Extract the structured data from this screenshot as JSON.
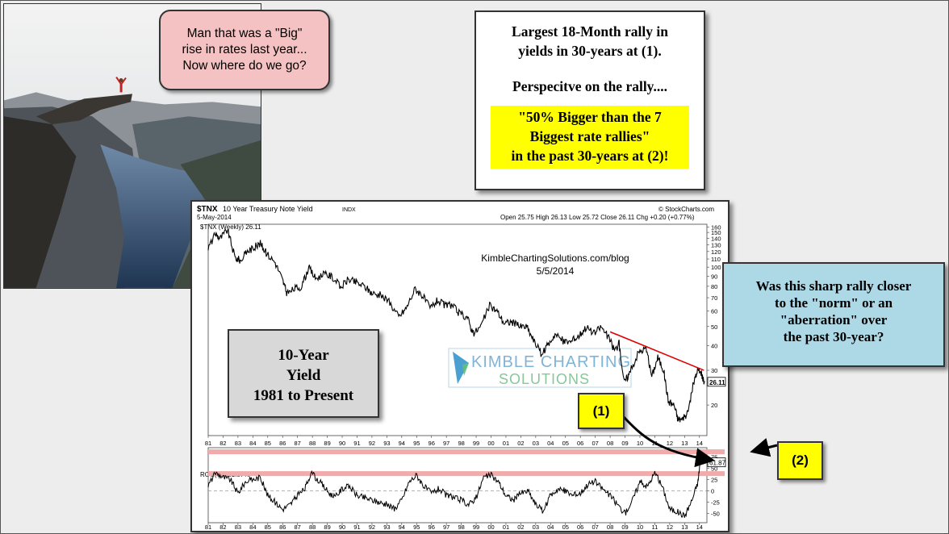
{
  "meme": {
    "bubble": "Man that was a \"Big\"\nrise in rates last year...\nNow where do we go?"
  },
  "headline": {
    "line1": "Largest 18-Month rally in\nyields in 30-years at (1).",
    "line2": "Perspecitve on the rally....",
    "highlight": "\"50% Bigger than the 7\nBiggest rate rallies\"\nin the past 30-years at (2)!"
  },
  "series_box": "10-Year\nYield\n1981 to Present",
  "question_box": "Was this sharp rally closer\nto the \"norm\" or an\n\"aberration\" over\nthe past 30-year?",
  "markers": {
    "one": "(1)",
    "two": "(2)"
  },
  "chart_header": {
    "symbol": "$TNX",
    "name": "10 Year Treasury Note Yield",
    "index": "INDX",
    "date": "5-May-2014",
    "ohlc": "Open 25.75  High 26.13  Low 25.72  Close 26.11  Chg +0.20 (+0.77%)",
    "source": "© StockCharts.com",
    "legend_price": "$TNX (Weekly) 26.11",
    "legend_roc": "ROC(78) 61.87%",
    "watermark_site": "KimbleChartingSolutions.com/blog",
    "watermark_date": "5/5/2014",
    "logo_line1": "KIMBLE CHARTING",
    "logo_line2": "SOLUTIONS",
    "last_price": "26.11",
    "last_roc": "61.87"
  },
  "colors": {
    "price_line": "#000000",
    "resistance_line": "#e00000",
    "band": "#f2aaaa",
    "bubble": "#f4c2c2",
    "highlight": "#ffff00",
    "question": "#add8e6",
    "series_box": "#d8d8d8"
  },
  "chart_data": [
    {
      "type": "line",
      "title": "$TNX (Weekly)",
      "x_ticks": [
        "81",
        "82",
        "83",
        "84",
        "85",
        "86",
        "87",
        "88",
        "89",
        "90",
        "91",
        "92",
        "93",
        "94",
        "95",
        "96",
        "97",
        "98",
        "99",
        "00",
        "01",
        "02",
        "03",
        "04",
        "05",
        "06",
        "07",
        "08",
        "09",
        "10",
        "11",
        "12",
        "13",
        "14"
      ],
      "y_scale": "log",
      "y_ticks": [
        20,
        30,
        40,
        50,
        60,
        70,
        80,
        90,
        100,
        110,
        120,
        130,
        140,
        150,
        160
      ],
      "ylim": [
        14,
        165
      ],
      "x": [
        1981.0,
        1981.5,
        1981.8,
        1982.3,
        1982.8,
        1983.2,
        1983.6,
        1984.0,
        1984.5,
        1984.9,
        1985.5,
        1986.0,
        1986.3,
        1986.8,
        1987.3,
        1987.75,
        1988.2,
        1988.8,
        1989.3,
        1989.9,
        1990.4,
        1990.9,
        1991.5,
        1992.0,
        1992.6,
        1993.2,
        1993.8,
        1994.3,
        1994.9,
        1995.4,
        1995.9,
        1996.4,
        1996.9,
        1997.4,
        1997.9,
        1998.4,
        1998.8,
        1999.3,
        1999.9,
        2000.4,
        2000.9,
        2001.4,
        2001.9,
        2002.4,
        2002.9,
        2003.4,
        2003.8,
        2004.3,
        2004.9,
        2005.4,
        2005.9,
        2006.4,
        2006.9,
        2007.4,
        2007.9,
        2008.3,
        2008.6,
        2008.95,
        2009.3,
        2009.9,
        2010.4,
        2010.8,
        2011.2,
        2011.6,
        2011.9,
        2012.3,
        2012.55,
        2012.9,
        2013.2,
        2013.6,
        2013.9,
        2014.1,
        2014.35
      ],
      "values": [
        125,
        148,
        140,
        155,
        112,
        108,
        120,
        125,
        132,
        118,
        106,
        86,
        73,
        78,
        80,
        100,
        88,
        92,
        90,
        79,
        87,
        84,
        80,
        74,
        72,
        66,
        56,
        62,
        78,
        72,
        62,
        68,
        64,
        64,
        58,
        56,
        46,
        50,
        64,
        60,
        52,
        53,
        50,
        50,
        42,
        36,
        40,
        46,
        42,
        42,
        45,
        50,
        46,
        50,
        44,
        38,
        41,
        26,
        29,
        37,
        39,
        28,
        35,
        30,
        21,
        20,
        17,
        17,
        18,
        26,
        30,
        29,
        26.11
      ],
      "resistance": {
        "x": [
          2008.0,
          2014.3
        ],
        "values": [
          47,
          30
        ]
      },
      "last_label": "26.11"
    },
    {
      "type": "line",
      "title": "ROC(78)",
      "x_ticks": [
        "81",
        "82",
        "83",
        "84",
        "85",
        "86",
        "87",
        "88",
        "89",
        "90",
        "91",
        "92",
        "93",
        "94",
        "95",
        "96",
        "97",
        "98",
        "99",
        "00",
        "01",
        "02",
        "03",
        "04",
        "05",
        "06",
        "07",
        "08",
        "09",
        "10",
        "11",
        "12",
        "13",
        "14"
      ],
      "y_ticks": [
        -50,
        -25,
        0,
        25,
        50,
        75
      ],
      "ylim": [
        -70,
        95
      ],
      "band_levels": [
        86,
        38
      ],
      "x": [
        1981.0,
        1981.5,
        1982.0,
        1982.5,
        1983.0,
        1983.5,
        1984.0,
        1984.5,
        1985.0,
        1985.5,
        1986.0,
        1986.5,
        1987.0,
        1987.5,
        1987.9,
        1988.5,
        1989.0,
        1989.5,
        1990.0,
        1990.5,
        1991.0,
        1991.5,
        1992.0,
        1992.5,
        1993.0,
        1993.5,
        1994.0,
        1994.5,
        1995.0,
        1995.5,
        1996.0,
        1996.5,
        1997.0,
        1997.5,
        1998.0,
        1998.5,
        1999.0,
        1999.5,
        2000.0,
        2000.5,
        2001.0,
        2001.5,
        2002.0,
        2002.5,
        2003.0,
        2003.5,
        2004.0,
        2004.5,
        2005.0,
        2005.5,
        2006.0,
        2006.5,
        2007.0,
        2007.5,
        2008.0,
        2008.5,
        2009.0,
        2009.5,
        2010.0,
        2010.5,
        2011.0,
        2011.5,
        2012.0,
        2012.5,
        2013.0,
        2013.5,
        2013.9,
        2014.1,
        2014.35
      ],
      "values": [
        12,
        40,
        30,
        25,
        -5,
        20,
        25,
        30,
        -10,
        -25,
        -40,
        -30,
        -10,
        5,
        40,
        20,
        0,
        -15,
        5,
        10,
        -10,
        -15,
        -20,
        -25,
        -30,
        -40,
        -20,
        20,
        35,
        10,
        -5,
        5,
        -10,
        -15,
        -20,
        -30,
        -15,
        30,
        35,
        20,
        -10,
        -20,
        -5,
        0,
        -30,
        -45,
        -10,
        5,
        0,
        -10,
        -5,
        15,
        20,
        5,
        -10,
        -30,
        -50,
        -20,
        20,
        10,
        40,
        10,
        -40,
        -45,
        -55,
        -20,
        20,
        82,
        61.87
      ],
      "last_label": "61.87"
    }
  ]
}
